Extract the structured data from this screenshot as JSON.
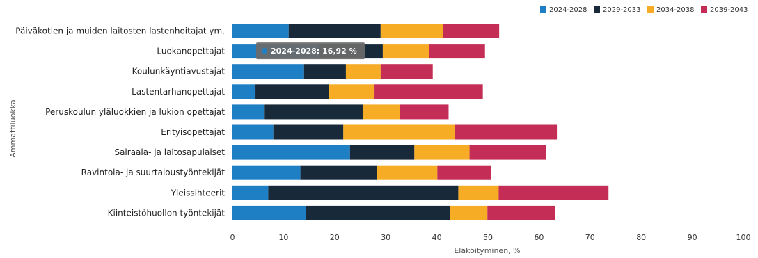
{
  "chart_data": {
    "type": "bar",
    "orientation": "horizontal",
    "stacked": true,
    "title": "",
    "xlabel": "Eläköityminen, %",
    "ylabel": "Ammattiluokka",
    "xlim": [
      0,
      100
    ],
    "xticks": [
      0,
      10,
      20,
      30,
      40,
      50,
      60,
      70,
      80,
      90,
      100
    ],
    "grid": false,
    "legend_position": "top-right",
    "categories": [
      "Päiväkotien ja muiden laitosten lastenhoitajat ym.",
      "Luokanopettajat",
      "Koulunkäyntiavustajat",
      "Lastentarhanopettajat",
      "Peruskoulun yläluokkien ja lukion opettajat",
      "Erityisopettajat",
      "Sairaala- ja laitosapulaiset",
      "Ravintola- ja suurtalous­työntekijät",
      "Yleissihteerit",
      "Kiinteistöhuollon työntekijät"
    ],
    "series": [
      {
        "name": "2024-2028",
        "color": "#1f7fc4",
        "values": [
          11,
          16.92,
          14,
          4.5,
          6.3,
          8,
          23,
          13.3,
          7,
          14.4
        ]
      },
      {
        "name": "2029-2033",
        "color": "#182a3a",
        "values": [
          18,
          12.5,
          8.2,
          14.4,
          19.3,
          13.7,
          12.6,
          15,
          37.2,
          28.2
        ]
      },
      {
        "name": "2034-2038",
        "color": "#f7ac25",
        "values": [
          12.2,
          9,
          6.8,
          8.9,
          7.2,
          21.8,
          10.8,
          11.8,
          7.9,
          7.3
        ]
      },
      {
        "name": "2039-2043",
        "color": "#c42d55",
        "values": [
          11,
          11,
          10.2,
          21.2,
          9.5,
          20,
          15,
          10.5,
          21.5,
          13.2
        ]
      }
    ],
    "tooltip": {
      "text": "2024-2028: 16,92 %",
      "category_index": 1,
      "series_index": 0
    }
  }
}
